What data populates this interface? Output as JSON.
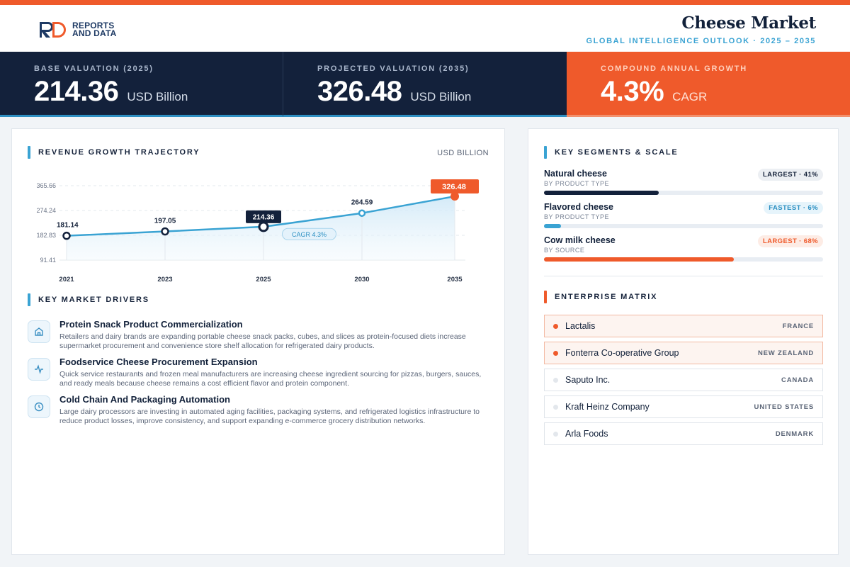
{
  "brand": {
    "logo_mark": "RD",
    "logo_line1": "REPORTS",
    "logo_line2": "AND DATA"
  },
  "header": {
    "title": "Cheese Market",
    "subtitle": "GLOBAL INTELLIGENCE OUTLOOK  ·  2025 – 2035"
  },
  "kpis": [
    {
      "label": "BASE VALUATION (2025)",
      "value": "214.36",
      "unit": "USD Billion"
    },
    {
      "label": "PROJECTED VALUATION (2035)",
      "value": "326.48",
      "unit": "USD Billion"
    },
    {
      "label": "COMPOUND ANNUAL GROWTH",
      "value": "4.3%",
      "unit": "CAGR"
    }
  ],
  "chart_section": {
    "title": "REVENUE GROWTH TRAJECTORY",
    "unit": "USD BILLION"
  },
  "chart_data": {
    "type": "area",
    "categories": [
      "2021",
      "2023",
      "2025",
      "2030",
      "2035"
    ],
    "values": [
      181.14,
      197.05,
      214.36,
      264.59,
      326.48
    ],
    "value_labels": [
      "181.14",
      "197.05",
      "214.36",
      "264.59",
      "326.48"
    ],
    "y_ticks": [
      91.41,
      182.83,
      274.24,
      365.66
    ],
    "y_tick_labels": [
      "91.41",
      "182.83",
      "274.24",
      "365.66"
    ],
    "ylim": [
      91.41,
      365.66
    ],
    "annotation": "CAGR 4.3%",
    "highlight": {
      "2025": "base",
      "2035": "projected"
    },
    "grid": true,
    "colors": {
      "line": "#3aa3d3",
      "projected": "#ef5a2b",
      "base": "#13213b",
      "area": "#e4f2fb"
    }
  },
  "drivers_section": {
    "title": "KEY MARKET DRIVERS"
  },
  "drivers": [
    {
      "icon": "store-icon",
      "title": "Protein Snack Product Commercialization",
      "description": "Retailers and dairy brands are expanding portable cheese snack packs, cubes, and slices as protein-focused diets increase supermarket procurement and convenience store shelf allocation for refrigerated dairy products."
    },
    {
      "icon": "activity-icon",
      "title": "Foodservice Cheese Procurement Expansion",
      "description": "Quick service restaurants and frozen meal manufacturers are increasing cheese ingredient sourcing for pizzas, burgers, sauces, and ready meals because cheese remains a cost efficient flavor and protein component."
    },
    {
      "icon": "clock-icon",
      "title": "Cold Chain And Packaging Automation",
      "description": "Large dairy processors are investing in automated aging facilities, packaging systems, and refrigerated logistics infrastructure to reduce product losses, improve consistency, and support expanding e-commerce grocery distribution networks."
    }
  ],
  "segments_section": {
    "title": "KEY SEGMENTS & SCALE"
  },
  "segments": [
    {
      "name": "Natural cheese",
      "by": "BY PRODUCT TYPE",
      "badge": "LARGEST · 41%",
      "share": 0.41,
      "color": "#13213b",
      "badge_bg": "#eceff3",
      "badge_fg": "#16233b"
    },
    {
      "name": "Flavored cheese",
      "by": "BY PRODUCT TYPE",
      "badge": "FASTEST · 6%",
      "share": 0.06,
      "color": "#3aa3d3",
      "badge_bg": "#e6f4fb",
      "badge_fg": "#2b8fc2"
    },
    {
      "name": "Cow milk cheese",
      "by": "BY SOURCE",
      "badge": "LARGEST · 68%",
      "share": 0.68,
      "color": "#ef5a2b",
      "badge_bg": "#fdece5",
      "badge_fg": "#ef5a2b"
    }
  ],
  "enterprise_section": {
    "title": "ENTERPRISE MATRIX"
  },
  "companies": [
    {
      "name": "Lactalis",
      "country": "FRANCE",
      "highlight": true
    },
    {
      "name": "Fonterra Co-operative Group",
      "country": "NEW ZEALAND",
      "highlight": true
    },
    {
      "name": "Saputo Inc.",
      "country": "CANADA",
      "highlight": false
    },
    {
      "name": "Kraft Heinz Company",
      "country": "UNITED STATES",
      "highlight": false
    },
    {
      "name": "Arla Foods",
      "country": "DENMARK",
      "highlight": false
    }
  ]
}
